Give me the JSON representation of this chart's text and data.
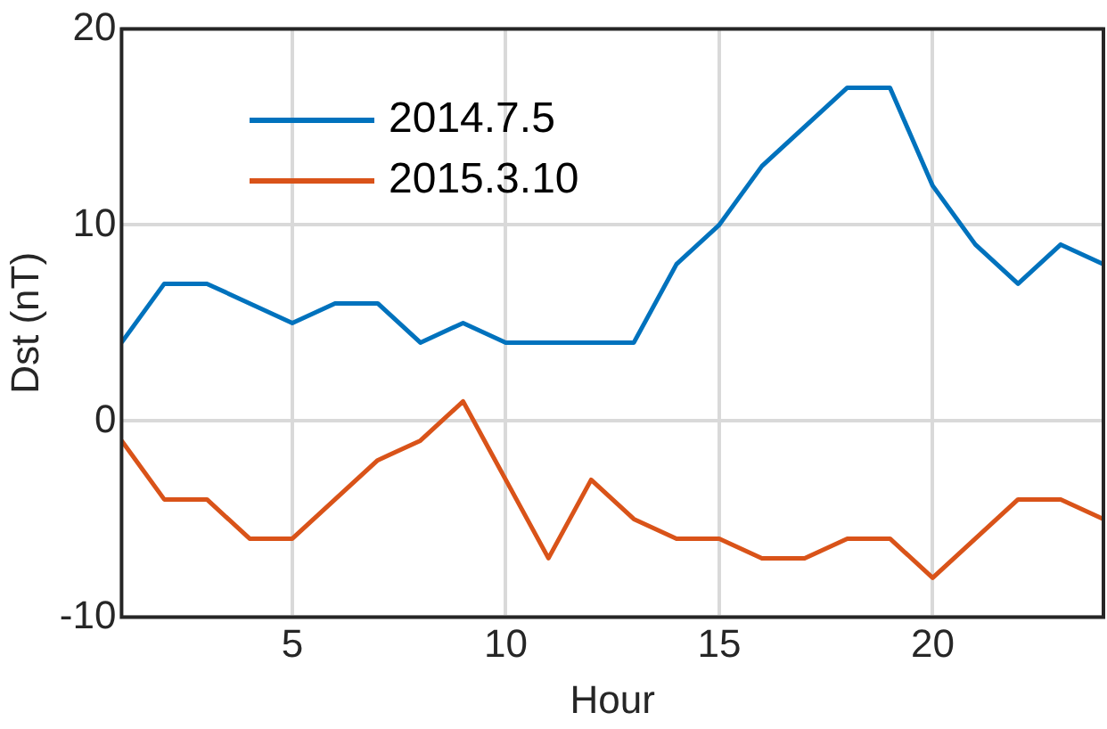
{
  "chart_data": {
    "type": "line",
    "xlabel": "Hour",
    "ylabel": "Dst (nT)",
    "x": [
      1,
      2,
      3,
      4,
      5,
      6,
      7,
      8,
      9,
      10,
      11,
      12,
      13,
      14,
      15,
      16,
      17,
      18,
      19,
      20,
      21,
      22,
      23,
      24
    ],
    "series": [
      {
        "name": "2014.7.5",
        "color": "#0072bd",
        "values": [
          4,
          7,
          7,
          6,
          5,
          6,
          6,
          4,
          5,
          4,
          4,
          4,
          4,
          8,
          10,
          13,
          15,
          17,
          17,
          12,
          9,
          7,
          9,
          8
        ]
      },
      {
        "name": "2015.3.10",
        "color": "#d95319",
        "values": [
          -1,
          -4,
          -4,
          -6,
          -6,
          -4,
          -2,
          -1,
          1,
          -3,
          -7,
          -3,
          -5,
          -6,
          -6,
          -7,
          -7,
          -6,
          -6,
          -8,
          -6,
          -4,
          -4,
          -5
        ]
      }
    ],
    "xlim": [
      1,
      24
    ],
    "xticks": [
      5,
      10,
      15,
      20
    ],
    "ylim": [
      -10,
      20
    ],
    "yticks": [
      -10,
      0,
      10,
      20
    ],
    "grid": true,
    "legend": "top left",
    "marker": "none",
    "line_style": "solid"
  }
}
